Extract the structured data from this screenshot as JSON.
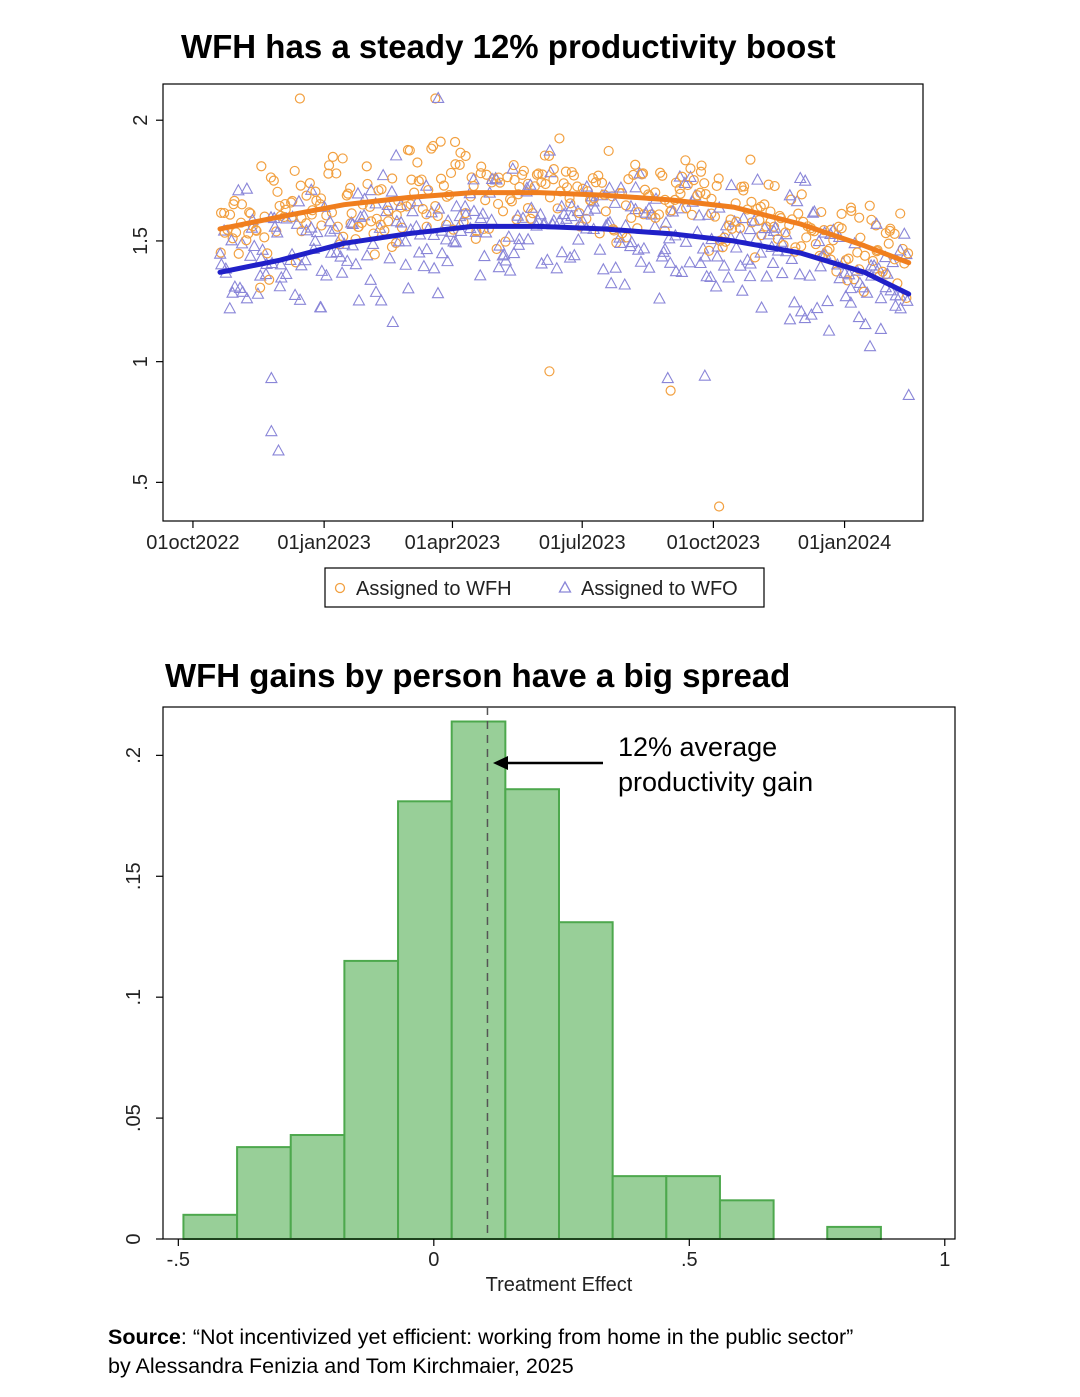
{
  "chart_data": [
    {
      "type": "scatter",
      "title": "WFH has a steady 12% productivity boost",
      "xlabel": "",
      "ylabel": "",
      "x_ticks": [
        "01oct2022",
        "01jan2023",
        "01apr2023",
        "01jul2023",
        "01oct2023",
        "01jan2024"
      ],
      "y_ticks": [
        ".5",
        "1",
        "1.5",
        "2"
      ],
      "xlim": [
        "2022-09-10",
        "2024-02-25"
      ],
      "ylim": [
        0.34,
        2.15
      ],
      "grid": false,
      "legend_position": "bottom",
      "series": [
        {
          "name": "Assigned to WFH",
          "marker": "circle",
          "color": "#F2A040",
          "fit_color": "#F07E1E",
          "fit_line": [
            [
              "2022-10-20",
              1.55
            ],
            [
              "2022-12-01",
              1.6
            ],
            [
              "2023-01-15",
              1.65
            ],
            [
              "2023-03-01",
              1.68
            ],
            [
              "2023-04-15",
              1.7
            ],
            [
              "2023-06-01",
              1.7
            ],
            [
              "2023-07-15",
              1.69
            ],
            [
              "2023-09-01",
              1.67
            ],
            [
              "2023-10-15",
              1.64
            ],
            [
              "2023-12-01",
              1.57
            ],
            [
              "2024-01-15",
              1.48
            ],
            [
              "2024-02-15",
              1.41
            ]
          ],
          "outliers": [
            [
              "2022-12-15",
              2.09
            ],
            [
              "2023-03-20",
              2.09
            ],
            [
              "2023-06-08",
              0.96
            ],
            [
              "2023-09-01",
              0.88
            ],
            [
              "2023-10-05",
              0.4
            ]
          ]
        },
        {
          "name": "Assigned to WFO",
          "marker": "triangle",
          "color": "#8A86D8",
          "fit_color": "#2020C8",
          "fit_line": [
            [
              "2022-10-20",
              1.37
            ],
            [
              "2022-12-01",
              1.42
            ],
            [
              "2023-01-15",
              1.49
            ],
            [
              "2023-03-01",
              1.53
            ],
            [
              "2023-04-15",
              1.56
            ],
            [
              "2023-06-01",
              1.56
            ],
            [
              "2023-07-15",
              1.55
            ],
            [
              "2023-09-01",
              1.53
            ],
            [
              "2023-10-15",
              1.5
            ],
            [
              "2023-12-01",
              1.45
            ],
            [
              "2024-01-15",
              1.37
            ],
            [
              "2024-02-15",
              1.28
            ]
          ],
          "outliers": [
            [
              "2022-11-25",
              0.93
            ],
            [
              "2022-11-25",
              0.71
            ],
            [
              "2022-11-30",
              0.63
            ],
            [
              "2023-03-22",
              2.09
            ],
            [
              "2023-08-30",
              0.93
            ],
            [
              "2023-09-25",
              0.94
            ],
            [
              "2024-02-15",
              0.86
            ]
          ]
        }
      ]
    },
    {
      "type": "bar",
      "title": "WFH gains by person have a big spread",
      "xlabel": "Treatment Effect",
      "ylabel": "",
      "bar_color": "#98CF98",
      "bar_edge_color": "#4DA84D",
      "x_ticks": [
        "-.5",
        "0",
        ".5",
        "1"
      ],
      "y_ticks": [
        "0",
        ".05",
        ".1",
        ".15",
        ".2"
      ],
      "xlim": [
        -0.53,
        1.02
      ],
      "ylim": [
        0,
        0.22
      ],
      "grid": false,
      "bins": [
        {
          "x0": -0.49,
          "x1": -0.385,
          "density": 0.01
        },
        {
          "x0": -0.385,
          "x1": -0.28,
          "density": 0.038
        },
        {
          "x0": -0.28,
          "x1": -0.175,
          "density": 0.043
        },
        {
          "x0": -0.175,
          "x1": -0.07,
          "density": 0.115
        },
        {
          "x0": -0.07,
          "x1": 0.035,
          "density": 0.181
        },
        {
          "x0": 0.035,
          "x1": 0.14,
          "density": 0.214
        },
        {
          "x0": 0.14,
          "x1": 0.245,
          "density": 0.186
        },
        {
          "x0": 0.245,
          "x1": 0.35,
          "density": 0.131
        },
        {
          "x0": 0.35,
          "x1": 0.455,
          "density": 0.026
        },
        {
          "x0": 0.455,
          "x1": 0.56,
          "density": 0.026
        },
        {
          "x0": 0.56,
          "x1": 0.665,
          "density": 0.016
        },
        {
          "x0": 0.665,
          "x1": 0.77,
          "density": 0
        },
        {
          "x0": 0.77,
          "x1": 0.875,
          "density": 0.005
        }
      ],
      "mean_line": 0.105,
      "annotation": {
        "line1": "12% average",
        "line2": "productivity gain"
      }
    }
  ],
  "source": {
    "label": "Source",
    "text": ": “Not incentivized yet efficient: working from home in the public sector”",
    "line2": "by Alessandra Fenizia and Tom Kirchmaier, 2025"
  }
}
